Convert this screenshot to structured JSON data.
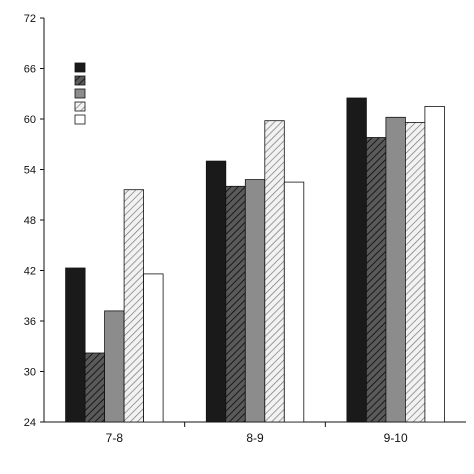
{
  "chart_data": {
    "type": "bar",
    "categories": [
      "7-8",
      "8-9",
      "9-10"
    ],
    "series": [
      {
        "values": [
          42.3,
          55.0,
          62.5
        ],
        "fill": "#1a1a1a",
        "pattern": "solid"
      },
      {
        "values": [
          32.2,
          52.0,
          57.8
        ],
        "fill": "#4a4a4a",
        "pattern": "dark-hatch"
      },
      {
        "values": [
          37.2,
          52.8,
          60.2
        ],
        "fill": "#8c8c8c",
        "pattern": "solid"
      },
      {
        "values": [
          51.6,
          59.8,
          59.6
        ],
        "fill": "#d8d8d8",
        "pattern": "light-hatch"
      },
      {
        "values": [
          41.6,
          52.5,
          61.5
        ],
        "fill": "#ffffff",
        "pattern": "solid"
      }
    ],
    "yticks": [
      "24",
      "30",
      "36",
      "42",
      "48",
      "54",
      "60",
      "66",
      "72"
    ],
    "ylim": [
      24,
      72
    ],
    "grid": false,
    "legend": "top-left",
    "title": "",
    "xlabel": "",
    "ylabel": ""
  }
}
